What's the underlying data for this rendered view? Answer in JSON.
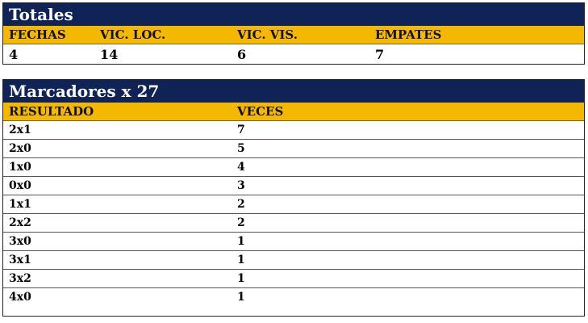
{
  "totales": {
    "title": "Totales",
    "headers": [
      "FECHAS",
      "VIC. LOC.",
      "VIC. VIS.",
      "EMPATES"
    ],
    "values": [
      "4",
      "14",
      "6",
      "7"
    ]
  },
  "marcadores": {
    "title": "Marcadores x 27",
    "headers": [
      "RESULTADO",
      "VECES"
    ],
    "rows": [
      {
        "resultado": "2x1",
        "veces": "7"
      },
      {
        "resultado": "2x0",
        "veces": "5"
      },
      {
        "resultado": "1x0",
        "veces": "4"
      },
      {
        "resultado": "0x0",
        "veces": "3"
      },
      {
        "resultado": "1x1",
        "veces": "2"
      },
      {
        "resultado": "2x2",
        "veces": "2"
      },
      {
        "resultado": "3x0",
        "veces": "1"
      },
      {
        "resultado": "3x1",
        "veces": "1"
      },
      {
        "resultado": "3x2",
        "veces": "1"
      },
      {
        "resultado": "4x0",
        "veces": "1"
      }
    ]
  },
  "colors": {
    "title_bar": "#0f2357",
    "header_bar": "#f5b800",
    "title_text": "#ffffff"
  }
}
